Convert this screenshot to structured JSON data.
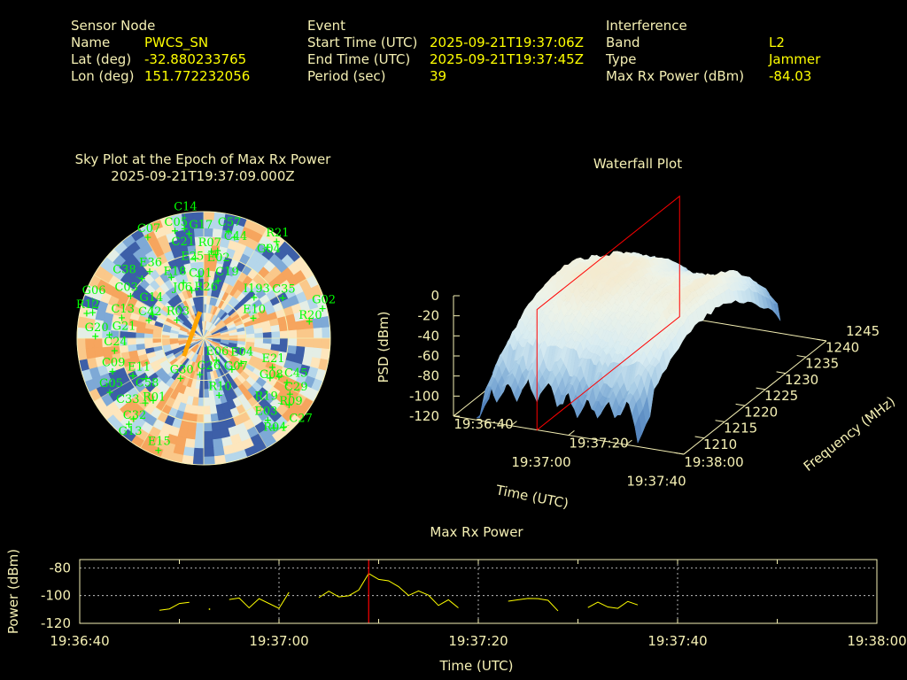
{
  "colors": {
    "label": "#f5f0b4",
    "value": "#ffff00",
    "satellite": "#00ff00",
    "marker": "#ff0000",
    "line": "#ffff00",
    "jammer_track": "#ffa500",
    "grid": "#f5f0b4"
  },
  "header": {
    "sensor": {
      "title": "Sensor Node",
      "rows": [
        {
          "label": "Name",
          "value": "PWCS_SN"
        },
        {
          "label": "Lat (deg)",
          "value": "-32.880233765"
        },
        {
          "label": "Lon (deg)",
          "value": "151.772232056"
        }
      ]
    },
    "event": {
      "title": "Event",
      "rows": [
        {
          "label": "Start Time (UTC)",
          "value": "2025-09-21T19:37:06Z"
        },
        {
          "label": "End Time (UTC)",
          "value": "2025-09-21T19:37:45Z"
        },
        {
          "label": "Period (sec)",
          "value": "39"
        }
      ]
    },
    "interference": {
      "title": "Interference",
      "rows": [
        {
          "label": "Band",
          "value": "L2"
        },
        {
          "label": "Type",
          "value": "Jammer"
        },
        {
          "label": "Max Rx Power (dBm)",
          "value": "-84.03"
        }
      ]
    }
  },
  "sky_plot": {
    "title": "Sky Plot at the Epoch of Max Rx Power",
    "epoch": "2025-09-21T19:37:09.000Z",
    "elevation_rings_deg": [
      0,
      30,
      60
    ],
    "azimuth_spokes_deg": [
      0,
      30,
      60,
      90,
      120,
      150,
      180,
      210,
      240,
      270,
      300,
      330
    ],
    "palette": [
      "#f6a55e",
      "#fac88a",
      "#fde6bd",
      "#e4eee6",
      "#b5d6ea",
      "#7ea9d6",
      "#3d5fa8"
    ],
    "jammer_track": [
      {
        "az": 228,
        "el": 71
      },
      {
        "az": 352,
        "el": 71
      }
    ],
    "satellites": [
      {
        "prn": "C07",
        "az": 331,
        "el": 8
      },
      {
        "prn": "C05",
        "az": 345,
        "el": 11
      },
      {
        "prn": "C14",
        "az": 350,
        "el": 11
      },
      {
        "prn": "G17",
        "az": 352,
        "el": 15
      },
      {
        "prn": "C57",
        "az": 13,
        "el": 12
      },
      {
        "prn": "C44",
        "az": 17,
        "el": 15
      },
      {
        "prn": "R21",
        "az": 37,
        "el": 4
      },
      {
        "prn": "G04",
        "az": 35,
        "el": 11
      },
      {
        "prn": "R07",
        "az": 5,
        "el": 28
      },
      {
        "prn": "E02",
        "az": 9,
        "el": 27
      },
      {
        "prn": "E25",
        "az": 8,
        "el": 30
      },
      {
        "prn": "C21",
        "az": 354,
        "el": 33
      },
      {
        "prn": "E36",
        "az": 321,
        "el": 29
      },
      {
        "prn": "E18",
        "az": 332,
        "el": 41
      },
      {
        "prn": "C01",
        "az": 356,
        "el": 46
      },
      {
        "prn": "C19",
        "az": 14,
        "el": 48
      },
      {
        "prn": "J06",
        "az": 340,
        "el": 48
      },
      {
        "prn": "I193",
        "az": 51,
        "el": 44
      },
      {
        "prn": "C35",
        "az": 63,
        "el": 27
      },
      {
        "prn": "G02",
        "az": 76,
        "el": 3
      },
      {
        "prn": "R20",
        "az": 81,
        "el": 14
      },
      {
        "prn": "E10",
        "az": 68,
        "el": 52
      },
      {
        "prn": "R26",
        "az": 346,
        "el": 55
      },
      {
        "prn": "R03",
        "az": 304,
        "el": 67
      },
      {
        "prn": "C42",
        "az": 288,
        "el": 49
      },
      {
        "prn": "G14",
        "az": 295,
        "el": 50
      },
      {
        "prn": "C13",
        "az": 284,
        "el": 30
      },
      {
        "prn": "G20",
        "az": 271,
        "el": 13
      },
      {
        "prn": "G21",
        "az": 272,
        "el": 23
      },
      {
        "prn": "R12",
        "az": 282,
        "el": 5
      },
      {
        "prn": "G06",
        "az": 283,
        "el": 9
      },
      {
        "prn": "C03",
        "az": 300,
        "el": 30
      },
      {
        "prn": "C38",
        "az": 314,
        "el": 29
      },
      {
        "prn": "C24",
        "az": 262,
        "el": 26
      },
      {
        "prn": "G05",
        "az": 240,
        "el": 13
      },
      {
        "prn": "C09",
        "az": 250,
        "el": 21
      },
      {
        "prn": "E11",
        "az": 242,
        "el": 33
      },
      {
        "prn": "C58",
        "az": 235,
        "el": 40
      },
      {
        "prn": "R01",
        "az": 219,
        "el": 33
      },
      {
        "prn": "C33",
        "az": 222,
        "el": 28
      },
      {
        "prn": "C32",
        "az": 221,
        "el": 14
      },
      {
        "prn": "G13",
        "az": 221,
        "el": 9
      },
      {
        "prn": "E15",
        "az": 202,
        "el": 4
      },
      {
        "prn": "G30",
        "az": 210,
        "el": 57
      },
      {
        "prn": "C26",
        "az": 186,
        "el": 64
      },
      {
        "prn": "E06",
        "az": 150,
        "el": 72
      },
      {
        "prn": "G07",
        "az": 138,
        "el": 60
      },
      {
        "prn": "E04",
        "az": 124,
        "el": 58
      },
      {
        "prn": "R10",
        "az": 165,
        "el": 48
      },
      {
        "prn": "E21",
        "az": 113,
        "el": 37
      },
      {
        "prn": "G08",
        "az": 121,
        "el": 35
      },
      {
        "prn": "C45",
        "az": 117,
        "el": 30
      },
      {
        "prn": "C29",
        "az": 118,
        "el": 23
      },
      {
        "prn": "R09",
        "az": 123,
        "el": 17
      },
      {
        "prn": "R19",
        "az": 128,
        "el": 13
      },
      {
        "prn": "E03",
        "az": 142,
        "el": 16
      },
      {
        "prn": "R04",
        "az": 142,
        "el": 9
      },
      {
        "prn": "C27",
        "az": 138,
        "el": 5
      }
    ]
  },
  "waterfall": {
    "title": "Waterfall Plot",
    "zlabel": "PSD (dBm)",
    "xlabel": "Time (UTC)",
    "ylabel": "Frequency (MHz)",
    "z_ticks": [
      "0",
      "-20",
      "-40",
      "-60",
      "-80",
      "-100",
      "-120"
    ],
    "time_ticks": [
      "19:36:40",
      "19:37:00",
      "19:37:20",
      "19:37:40",
      "19:38:00"
    ],
    "freq_ticks": [
      "1210",
      "1215",
      "1220",
      "1225",
      "1230",
      "1235",
      "1240",
      "1245"
    ],
    "zlim": [
      -120,
      0
    ],
    "freq_range_mhz": [
      1210,
      1245
    ],
    "marker_time": "19:37:09"
  },
  "chart_data": {
    "type": "line",
    "title": "Max Rx Power",
    "xlabel": "Time (UTC)",
    "ylabel": "Power (dBm)",
    "x_ticks": [
      "19:36:40",
      "19:37:00",
      "19:37:20",
      "19:37:40",
      "19:38:00"
    ],
    "y_ticks": [
      "-80",
      "-100",
      "-120"
    ],
    "xlim": [
      "19:36:40",
      "19:38:00"
    ],
    "ylim": [
      -120,
      -74
    ],
    "grid": true,
    "marker_time": "19:37:09",
    "series": [
      {
        "segments": [
          [
            [
              "19:36:48",
              -110.6
            ],
            [
              "19:36:49",
              -109.6
            ],
            [
              "19:36:50",
              -105.7
            ],
            [
              "19:36:51",
              -104.8
            ]
          ],
          [
            [
              "19:36:53",
              -109.6
            ]
          ],
          [
            [
              "19:36:55",
              -102.8
            ],
            [
              "19:36:56",
              -101.7
            ],
            [
              "19:36:57",
              -108.8
            ],
            [
              "19:36:58",
              -102.2
            ],
            [
              "19:37:00",
              -109.2
            ],
            [
              "19:37:01",
              -97.6
            ]
          ],
          [
            [
              "19:37:04",
              -101.4
            ],
            [
              "19:37:05",
              -96.8
            ],
            [
              "19:37:06",
              -100.9
            ],
            [
              "19:37:07",
              -100.1
            ],
            [
              "19:37:08",
              -96.0
            ],
            [
              "19:37:09",
              -84.03
            ],
            [
              "19:37:10",
              -88.3
            ],
            [
              "19:37:11",
              -89.3
            ],
            [
              "19:37:12",
              -93.5
            ],
            [
              "19:37:13",
              -99.9
            ],
            [
              "19:37:14",
              -96.6
            ],
            [
              "19:37:15",
              -99.7
            ],
            [
              "19:37:16",
              -107.1
            ],
            [
              "19:37:17",
              -103.0
            ],
            [
              "19:37:18",
              -108.8
            ]
          ],
          [
            [
              "19:37:23",
              -104.0
            ],
            [
              "19:37:24",
              -103.0
            ],
            [
              "19:37:25",
              -102.0
            ],
            [
              "19:37:26",
              -102.2
            ],
            [
              "19:37:27",
              -103.4
            ],
            [
              "19:37:28",
              -111.0
            ]
          ],
          [
            [
              "19:37:31",
              -108.6
            ],
            [
              "19:37:32",
              -104.7
            ],
            [
              "19:37:33",
              -108.2
            ],
            [
              "19:37:34",
              -109.2
            ],
            [
              "19:37:35",
              -104.2
            ],
            [
              "19:37:36",
              -106.7
            ]
          ]
        ]
      }
    ]
  }
}
